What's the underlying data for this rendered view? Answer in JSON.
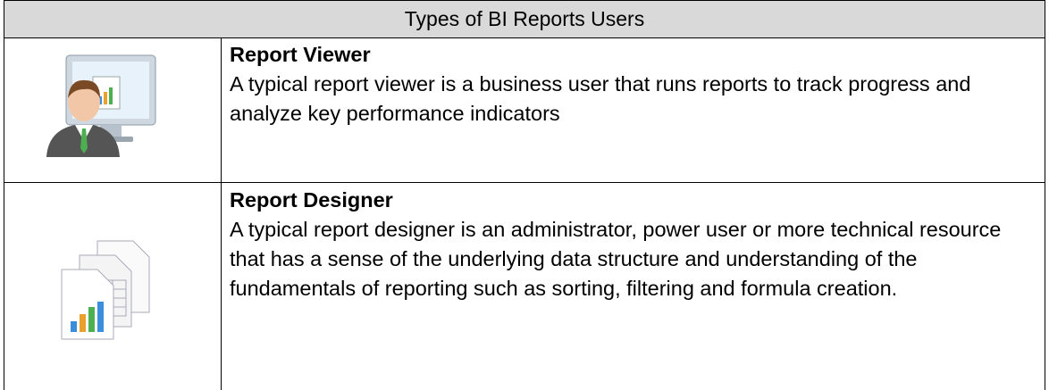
{
  "header": {
    "title": "Types of BI Reports Users"
  },
  "rows": [
    {
      "title": "Report Viewer",
      "description": "A typical report viewer is a business user that runs reports to track progress and analyze key performance indicators"
    },
    {
      "title": "Report Designer",
      "description": "A typical report designer is an administrator, power user or more technical resource that has a sense of the underlying data structure and understanding of the fundamentals of reporting such as sorting, filtering and formula creation."
    }
  ]
}
